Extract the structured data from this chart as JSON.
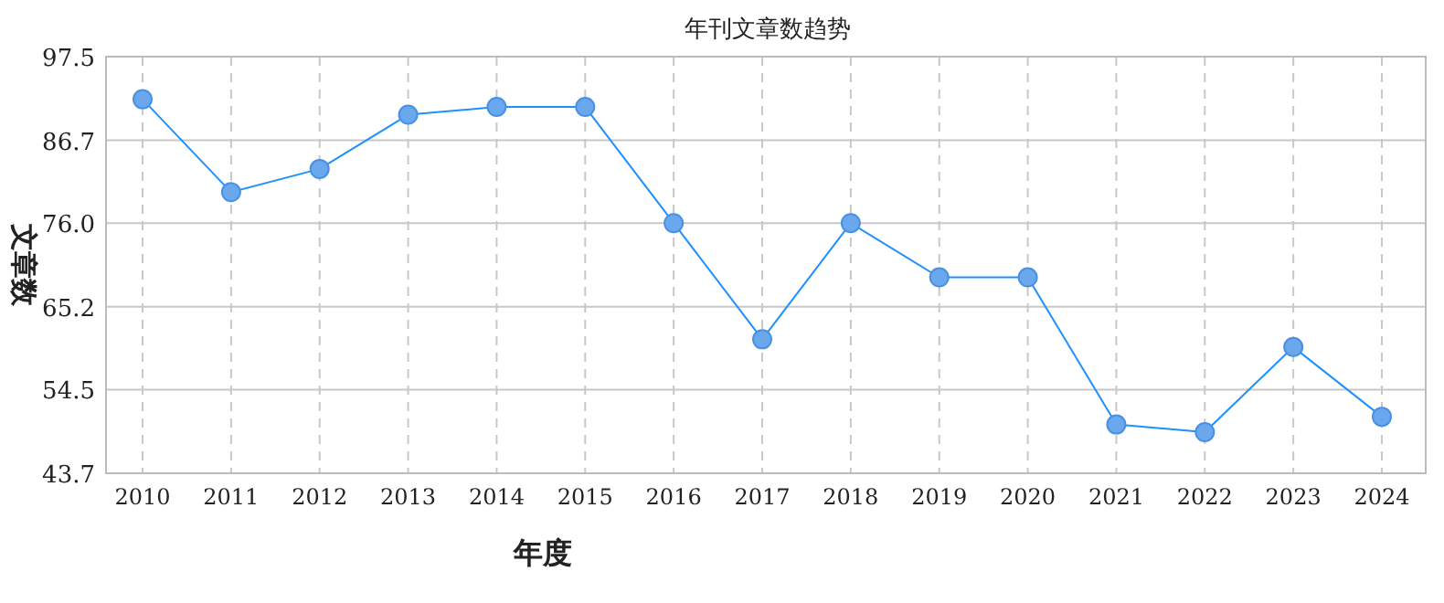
{
  "chart_data": {
    "type": "line",
    "title": "年刊文章数趋势",
    "xlabel": "年度",
    "ylabel": "文章数",
    "categories": [
      "2010",
      "2011",
      "2012",
      "2013",
      "2014",
      "2015",
      "2016",
      "2017",
      "2018",
      "2019",
      "2020",
      "2021",
      "2022",
      "2023",
      "2024"
    ],
    "series": [
      {
        "color": "#1e90ff",
        "values": [
          92,
          80,
          83,
          90,
          91,
          91,
          76,
          61,
          76,
          69,
          69,
          50,
          49,
          60,
          51
        ]
      }
    ],
    "ylim": [
      43.7,
      97.5
    ],
    "yticks": [
      43.7,
      54.5,
      65.2,
      {
        "value": 76,
        "label": "76.0"
      },
      86.7,
      97.5
    ],
    "grid": true,
    "marker": "circle",
    "line_style": "solid"
  }
}
